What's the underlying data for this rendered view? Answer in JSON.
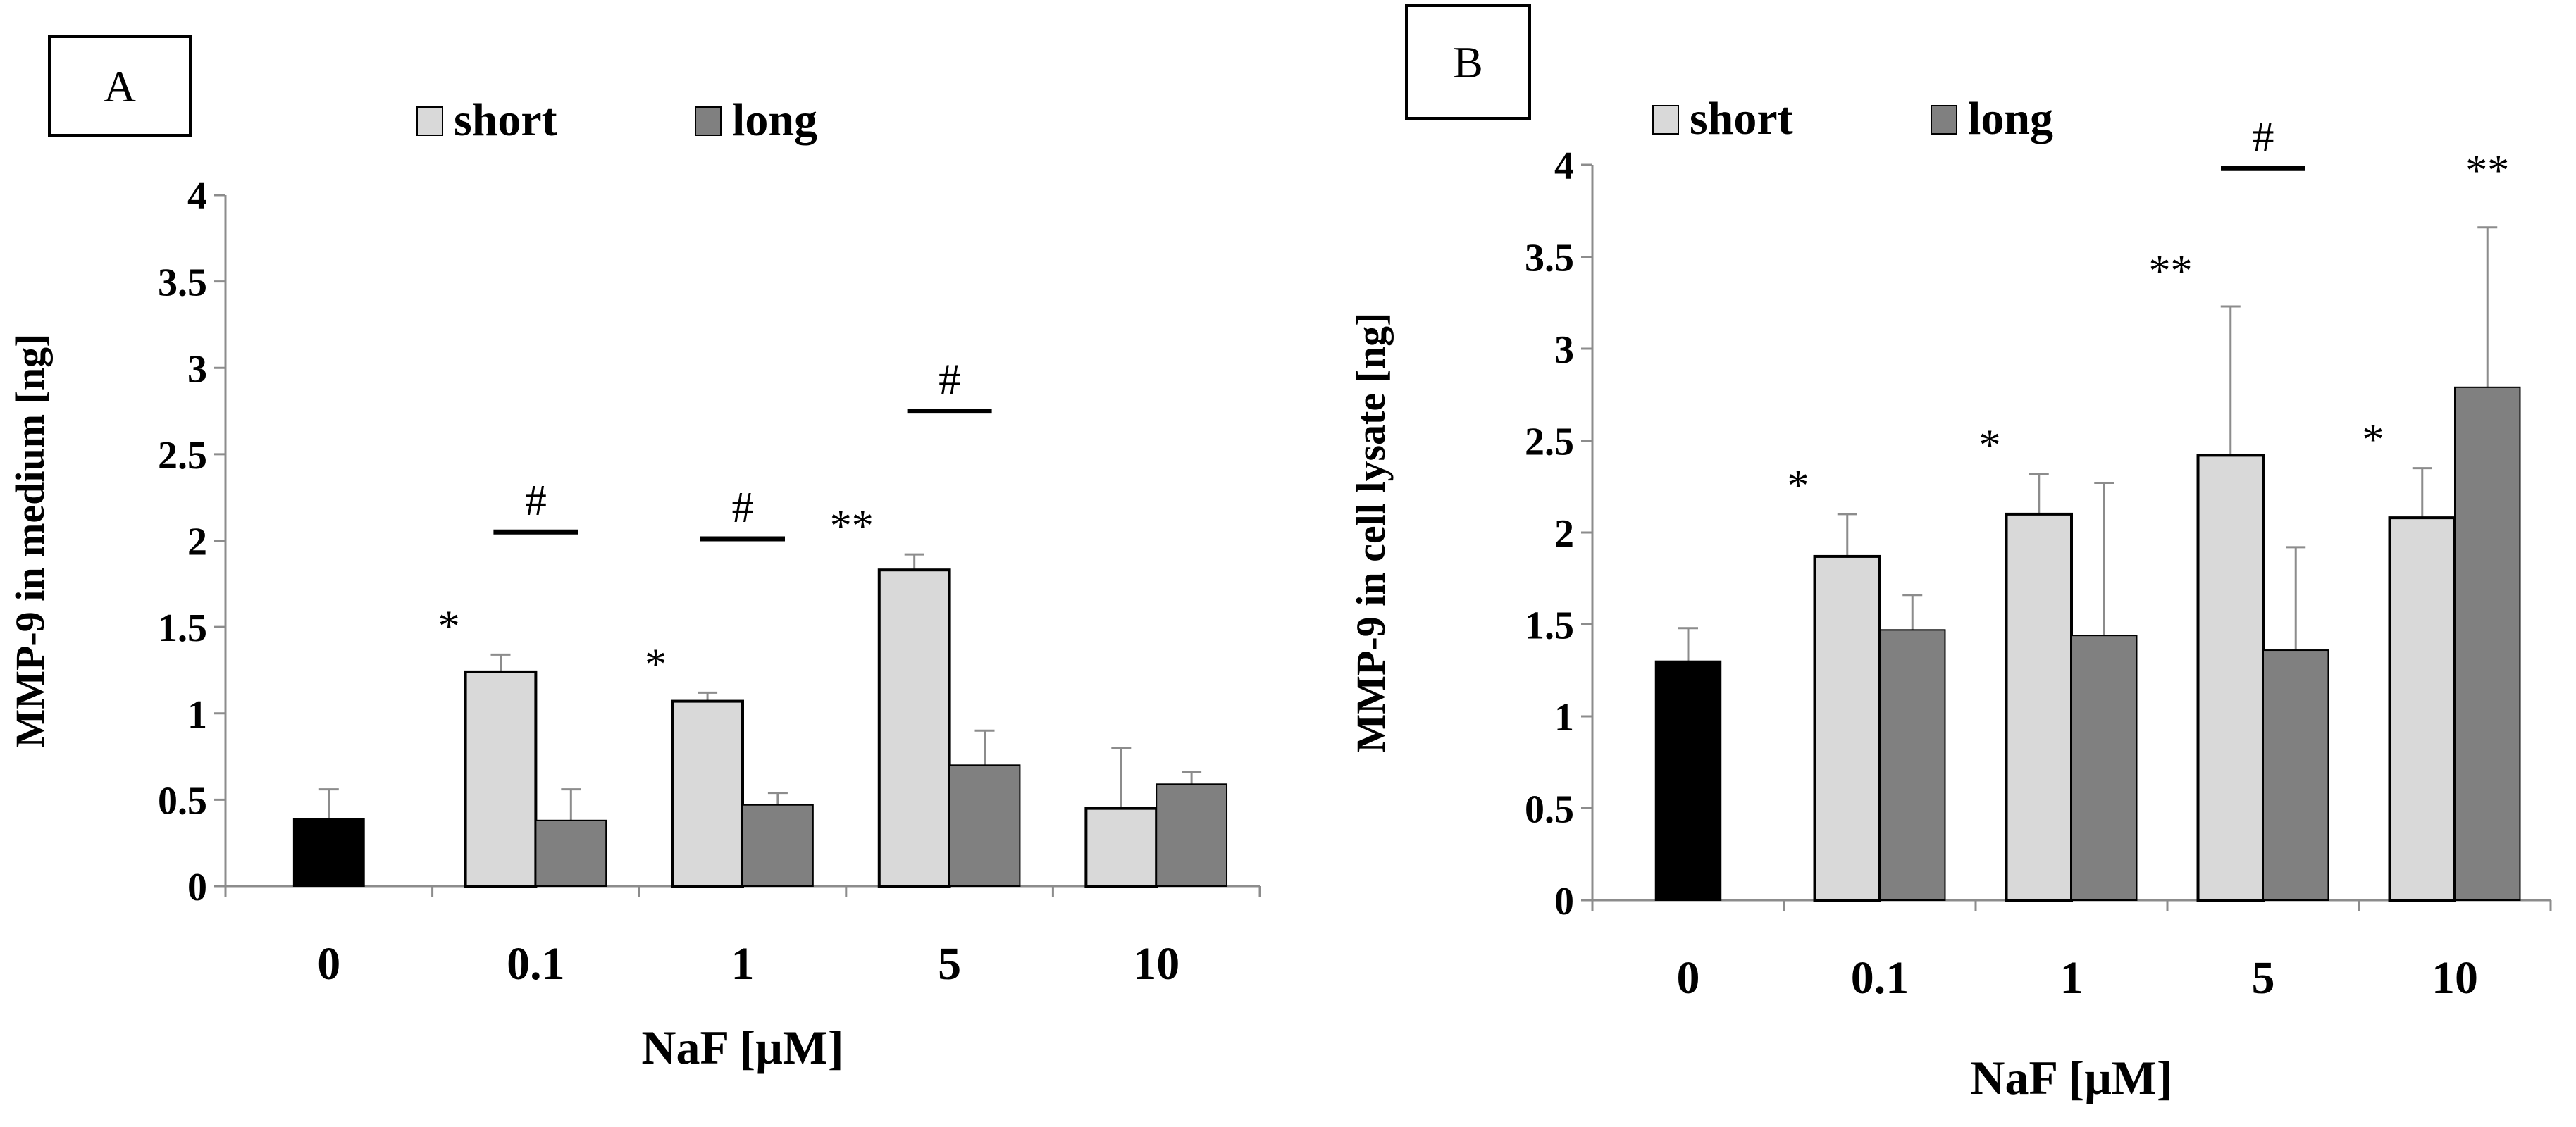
{
  "colors": {
    "short": "#d9d9d9",
    "long": "#808080",
    "control": "#000000",
    "stroke": "#000000",
    "axis": "#8c8c8c"
  },
  "chart_data": [
    {
      "panel_label": "A",
      "type": "bar",
      "ylabel": "MMP-9 in medium [ng]",
      "xlabel": "NaF [μM]",
      "ylim": [
        0,
        4
      ],
      "yticks": [
        0,
        0.5,
        1,
        1.5,
        2,
        2.5,
        3,
        3.5,
        4
      ],
      "ytick_labels": [
        "0",
        "0.5",
        "1",
        "1.5",
        "2",
        "2.5",
        "3",
        "3.5",
        "4"
      ],
      "categories": [
        "0",
        "0.1",
        "1",
        "5",
        "10"
      ],
      "legend": [
        "short",
        "long"
      ],
      "control": {
        "name": "control",
        "category": "0",
        "value": 0.39,
        "error": 0.17
      },
      "series": [
        {
          "name": "short",
          "values": [
            null,
            1.24,
            1.07,
            1.83,
            0.45
          ],
          "errors": [
            null,
            0.1,
            0.05,
            0.09,
            0.35
          ]
        },
        {
          "name": "long",
          "values": [
            null,
            0.38,
            0.47,
            0.7,
            0.59
          ],
          "errors": [
            null,
            0.18,
            0.07,
            0.2,
            0.07
          ]
        }
      ],
      "annotations": [
        {
          "category": "0.1",
          "series": "short",
          "text": "*"
        },
        {
          "category": "1",
          "series": "short",
          "text": "*"
        },
        {
          "category": "5",
          "series": "short",
          "text": "**"
        }
      ],
      "brackets": [
        {
          "category": "0.1",
          "text": "#",
          "y": 2.05
        },
        {
          "category": "1",
          "text": "#",
          "y": 2.01
        },
        {
          "category": "5",
          "text": "#",
          "y": 2.75
        }
      ]
    },
    {
      "panel_label": "B",
      "type": "bar",
      "ylabel": "MMP-9 in cell lysate [ng]",
      "xlabel": "NaF [μM]",
      "ylim": [
        0,
        4
      ],
      "yticks": [
        0,
        0.5,
        1,
        1.5,
        2,
        2.5,
        3,
        3.5,
        4
      ],
      "ytick_labels": [
        "0",
        "0.5",
        "1",
        "1.5",
        "2",
        "2.5",
        "3",
        "3.5",
        "4"
      ],
      "categories": [
        "0",
        "0.1",
        "1",
        "5",
        "10"
      ],
      "legend": [
        "short",
        "long"
      ],
      "control": {
        "name": "control",
        "category": "0",
        "value": 1.3,
        "error": 0.18
      },
      "series": [
        {
          "name": "short",
          "values": [
            null,
            1.87,
            2.1,
            2.42,
            2.08
          ],
          "errors": [
            null,
            0.23,
            0.22,
            0.81,
            0.27
          ]
        },
        {
          "name": "long",
          "values": [
            null,
            1.47,
            1.44,
            1.36,
            2.79
          ],
          "errors": [
            null,
            0.19,
            0.83,
            0.56,
            0.87
          ]
        }
      ],
      "annotations": [
        {
          "category": "0.1",
          "series": "short",
          "text": "*"
        },
        {
          "category": "1",
          "series": "short",
          "text": "*"
        },
        {
          "category": "5",
          "series": "short",
          "text": "**"
        },
        {
          "category": "10",
          "series": "short",
          "text": "*"
        },
        {
          "category": "10",
          "series": "long",
          "text": "**"
        }
      ],
      "brackets": [
        {
          "category": "5",
          "text": "#",
          "y": 3.98
        }
      ]
    }
  ]
}
